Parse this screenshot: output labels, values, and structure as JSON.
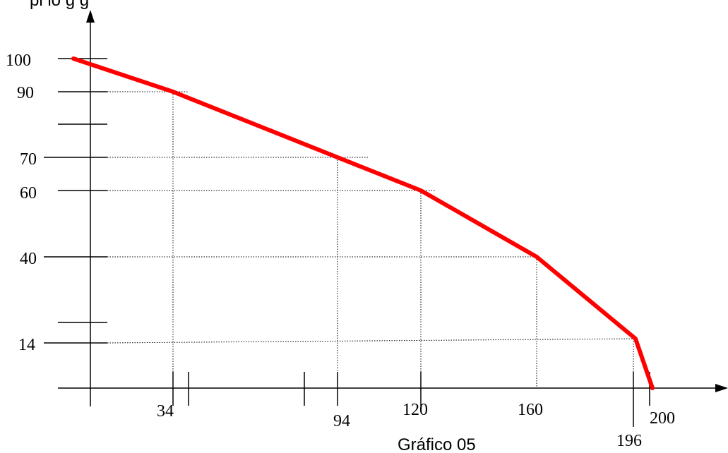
{
  "top_note": "pl        lo       g  g",
  "caption": "Gráfico 05",
  "chart_data": {
    "type": "line",
    "title": "",
    "xlabel": "",
    "ylabel": "",
    "xlim": [
      0,
      210
    ],
    "ylim": [
      0,
      110
    ],
    "grid": false,
    "series": [
      {
        "color": "#ff0000",
        "x": [
          0,
          34,
          94,
          120,
          160,
          196,
          200
        ],
        "y": [
          100,
          90,
          70,
          60,
          40,
          14,
          0
        ]
      }
    ],
    "x_tick_labels": [
      "34",
      "94",
      "120",
      "160",
      "196",
      "200"
    ],
    "y_tick_labels": [
      "100",
      "90",
      "70",
      "60",
      "40",
      "14"
    ]
  }
}
